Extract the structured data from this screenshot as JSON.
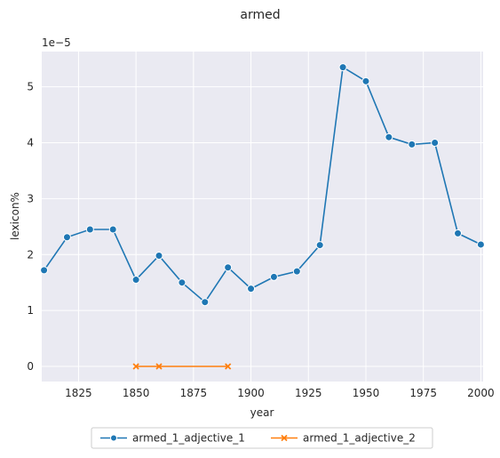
{
  "chart_data": {
    "type": "line",
    "title": "armed",
    "xlabel": "year",
    "ylabel": "lexicon%",
    "y_offset_label": "1e−5",
    "xlim": [
      1809,
      2001
    ],
    "ylim": [
      -0.27,
      5.63
    ],
    "x_ticks": [
      1825,
      1850,
      1875,
      1900,
      1925,
      1950,
      1975,
      2000
    ],
    "y_ticks": [
      0,
      1,
      2,
      3,
      4,
      5
    ],
    "grid": true,
    "legend_position": "bottom-center",
    "series": [
      {
        "name": "armed_1_adjective_1",
        "color": "#1f77b4",
        "marker": "circle",
        "x": [
          1810,
          1820,
          1830,
          1840,
          1850,
          1860,
          1870,
          1880,
          1890,
          1900,
          1910,
          1920,
          1930,
          1940,
          1950,
          1960,
          1970,
          1980,
          1990,
          2000
        ],
        "y": [
          1.72,
          2.31,
          2.45,
          2.45,
          1.55,
          1.98,
          1.5,
          1.15,
          1.77,
          1.39,
          1.6,
          1.7,
          2.17,
          5.35,
          5.1,
          4.1,
          3.97,
          4.0,
          2.38,
          2.18
        ]
      },
      {
        "name": "armed_1_adjective_2",
        "color": "#ff7f0e",
        "marker": "x",
        "x": [
          1850,
          1860,
          1890
        ],
        "y": [
          0,
          0,
          0
        ]
      }
    ]
  },
  "colors": {
    "plot_background": "#eaeaf2",
    "grid": "#ffffff",
    "text": "#262626"
  }
}
